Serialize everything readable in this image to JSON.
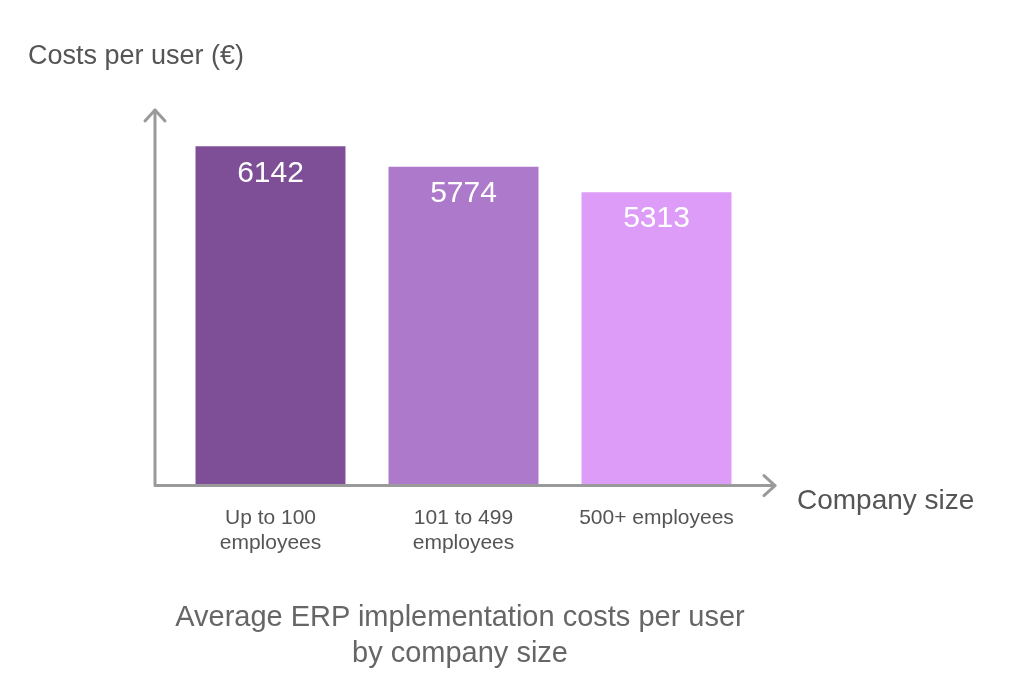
{
  "chart_data": {
    "type": "bar",
    "title": "Average ERP implementation costs per user by company size",
    "x_label": "Company size",
    "y_label": "Costs per user (€)",
    "categories": [
      "Up to 100 employees",
      "101 to 499 employees",
      "500+ employees"
    ],
    "values": [
      6142,
      5774,
      5313
    ],
    "colors": [
      "#7e4f97",
      "#ad79cb",
      "#dc9cf8"
    ],
    "ylim": [
      0,
      6800
    ],
    "grid": false,
    "data_labels": true,
    "tick_labels": "x"
  }
}
